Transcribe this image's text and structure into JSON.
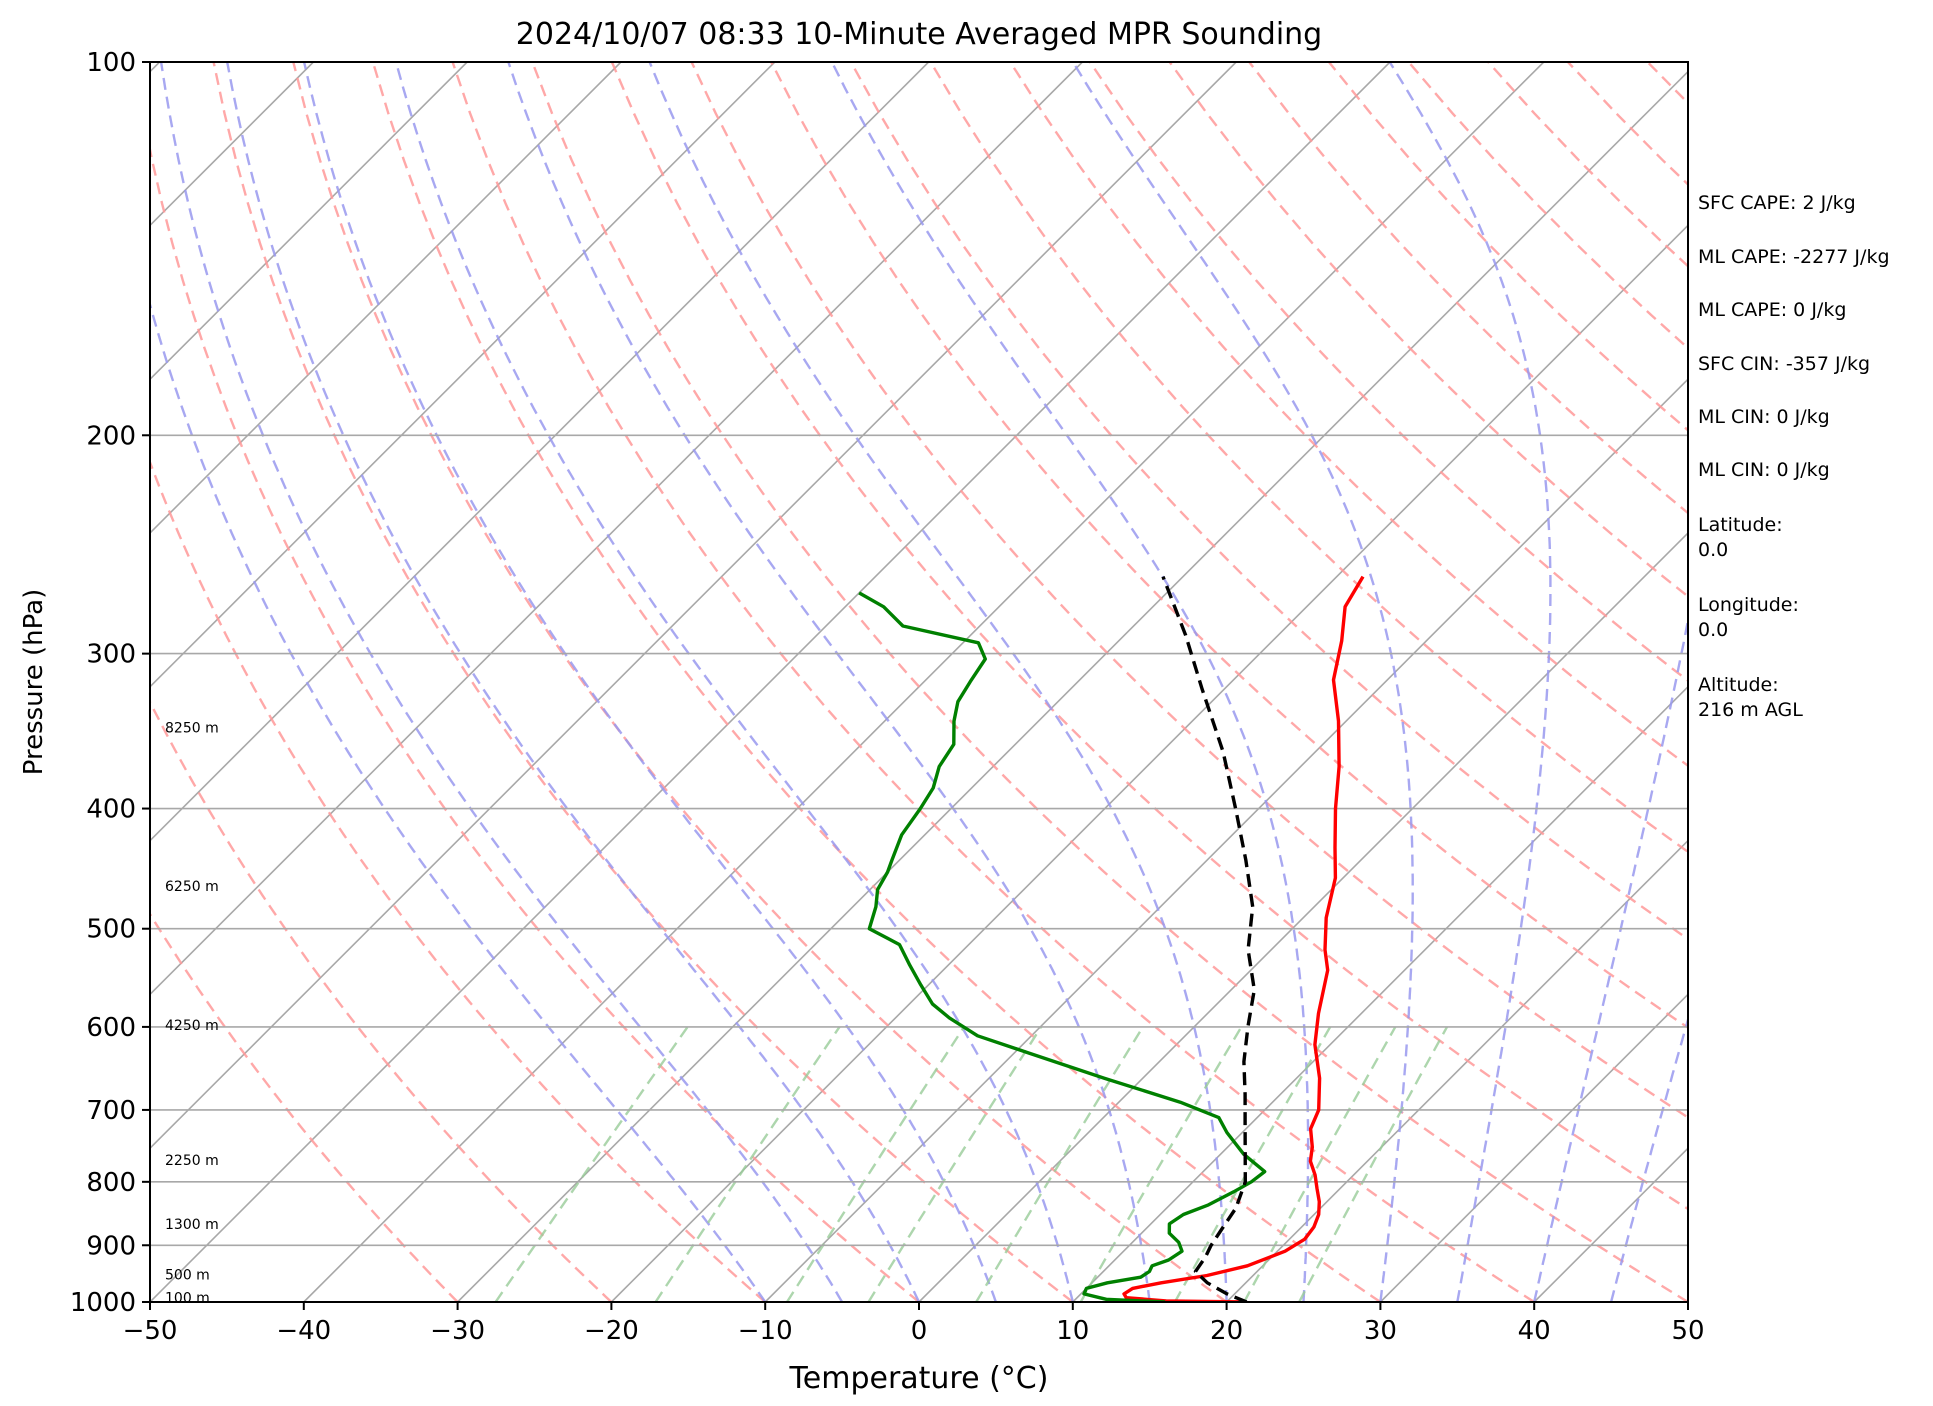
{
  "chart_data": {
    "type": "line",
    "title": "2024/10/07 08:33 10-Minute Averaged MPR Sounding",
    "xlabel": "Temperature (°C)",
    "ylabel": "Pressure (hPa)",
    "xlim": [
      -50,
      50
    ],
    "ylim": [
      1000,
      100
    ],
    "y_scale": "log",
    "x_ticks": [
      "−50",
      "−40",
      "−30",
      "−20",
      "−10",
      "0",
      "10",
      "20",
      "30",
      "40",
      "50"
    ],
    "y_ticks": [
      "100",
      "200",
      "300",
      "400",
      "500",
      "600",
      "700",
      "800",
      "900",
      "1000"
    ],
    "grid": true,
    "series": [
      {
        "color": "#ff0000",
        "style": "solid",
        "points": [
          [
            1000,
            21.3
          ],
          [
            998,
            16.0
          ],
          [
            992,
            13.2
          ],
          [
            985,
            12.8
          ],
          [
            975,
            13.0
          ],
          [
            965,
            14.5
          ],
          [
            952,
            17.0
          ],
          [
            935,
            19.0
          ],
          [
            910,
            20.5
          ],
          [
            890,
            21.0
          ],
          [
            870,
            20.8
          ],
          [
            850,
            20.3
          ],
          [
            830,
            19.5
          ],
          [
            810,
            18.5
          ],
          [
            790,
            17.5
          ],
          [
            770,
            16.3
          ],
          [
            750,
            15.5
          ],
          [
            725,
            14.2
          ],
          [
            700,
            13.5
          ],
          [
            660,
            11.5
          ],
          [
            620,
            9.0
          ],
          [
            585,
            7.2
          ],
          [
            540,
            5.0
          ],
          [
            520,
            3.5
          ],
          [
            490,
            1.5
          ],
          [
            455,
            -0.5
          ],
          [
            430,
            -2.5
          ],
          [
            400,
            -5.0
          ],
          [
            370,
            -7.5
          ],
          [
            340,
            -10.5
          ],
          [
            315,
            -13.5
          ],
          [
            293,
            -15.5
          ],
          [
            275,
            -17.5
          ],
          [
            260,
            -18.3
          ]
        ]
      },
      {
        "color": "#008000",
        "style": "solid",
        "points": [
          [
            1000,
            16.0
          ],
          [
            995,
            12.0
          ],
          [
            985,
            10.2
          ],
          [
            975,
            10.0
          ],
          [
            965,
            11.0
          ],
          [
            955,
            12.8
          ],
          [
            945,
            13.0
          ],
          [
            935,
            12.8
          ],
          [
            925,
            13.5
          ],
          [
            910,
            13.8
          ],
          [
            895,
            13.0
          ],
          [
            880,
            11.8
          ],
          [
            865,
            11.2
          ],
          [
            850,
            11.5
          ],
          [
            835,
            12.5
          ],
          [
            815,
            13.3
          ],
          [
            800,
            13.8
          ],
          [
            785,
            14.0
          ],
          [
            760,
            11.5
          ],
          [
            730,
            9.0
          ],
          [
            710,
            7.5
          ],
          [
            690,
            4.0
          ],
          [
            660,
            -2.5
          ],
          [
            630,
            -9.0
          ],
          [
            610,
            -13.5
          ],
          [
            590,
            -16.5
          ],
          [
            575,
            -18.5
          ],
          [
            555,
            -20.5
          ],
          [
            535,
            -22.5
          ],
          [
            515,
            -24.5
          ],
          [
            500,
            -27.5
          ],
          [
            480,
            -28.5
          ],
          [
            465,
            -29.5
          ],
          [
            450,
            -30.0
          ],
          [
            440,
            -30.5
          ],
          [
            420,
            -31.5
          ],
          [
            400,
            -32.0
          ],
          [
            385,
            -32.5
          ],
          [
            370,
            -33.5
          ],
          [
            355,
            -34.0
          ],
          [
            340,
            -35.5
          ],
          [
            328,
            -36.5
          ],
          [
            316,
            -37.0
          ],
          [
            303,
            -37.5
          ],
          [
            294,
            -39.0
          ],
          [
            285,
            -45.0
          ],
          [
            275,
            -47.5
          ],
          [
            268,
            -50.0
          ]
        ]
      },
      {
        "color": "#000000",
        "style": "dashed",
        "points": [
          [
            1000,
            21.3
          ],
          [
            985,
            19.5
          ],
          [
            965,
            17.5
          ],
          [
            945,
            16.0
          ],
          [
            920,
            15.7
          ],
          [
            900,
            15.3
          ],
          [
            870,
            14.9
          ],
          [
            840,
            14.5
          ],
          [
            800,
            13.4
          ],
          [
            760,
            11.6
          ],
          [
            720,
            9.7
          ],
          [
            680,
            7.7
          ],
          [
            640,
            5.5
          ],
          [
            600,
            3.5
          ],
          [
            560,
            1.5
          ],
          [
            520,
            -1.5
          ],
          [
            480,
            -4.0
          ],
          [
            440,
            -7.5
          ],
          [
            400,
            -11.5
          ],
          [
            360,
            -16.0
          ],
          [
            320,
            -21.5
          ],
          [
            290,
            -26.0
          ],
          [
            260,
            -31.3
          ]
        ]
      }
    ],
    "height_labels": [
      {
        "p": 344,
        "text": "8250 m"
      },
      {
        "p": 462,
        "text": "6250 m"
      },
      {
        "p": 598,
        "text": "4250 m"
      },
      {
        "p": 768,
        "text": "2250 m"
      },
      {
        "p": 865,
        "text": "1300 m"
      },
      {
        "p": 950,
        "text": "500 m"
      },
      {
        "p": 992,
        "text": "100 m"
      }
    ],
    "background_lines": {
      "isotherm_color": "#a8a8a8",
      "dry_adiabat_color": "#ff9999",
      "moist_adiabat_color": "#9999ee",
      "mixing_ratio_color": "#99cc99"
    }
  },
  "side_panel": {
    "sfc_cape": "SFC CAPE: 2 J/kg",
    "ml_cape_1": "ML CAPE: -2277 J/kg",
    "ml_cape_2": "ML CAPE: 0 J/kg",
    "sfc_cin": "SFC CIN: -357 J/kg",
    "ml_cin_1": "ML CIN: 0 J/kg",
    "ml_cin_2": "ML CIN: 0 J/kg",
    "latitude_label": "Latitude:",
    "latitude_value": "0.0",
    "longitude_label": "Longitude:",
    "longitude_value": "0.0",
    "altitude_label": "Altitude:",
    "altitude_value": "216 m AGL"
  }
}
